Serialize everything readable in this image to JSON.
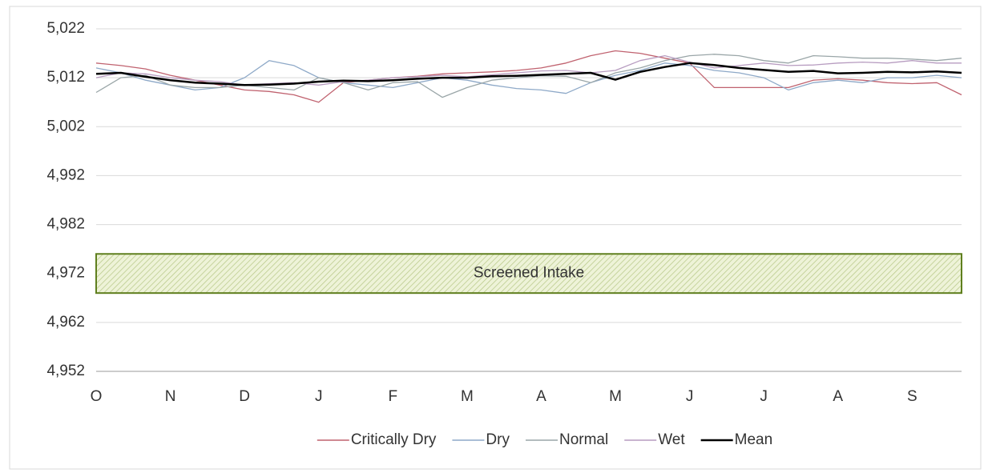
{
  "chart_data": {
    "type": "line",
    "categories": [
      "O",
      null,
      null,
      "N",
      null,
      null,
      "D",
      null,
      null,
      "J",
      null,
      null,
      "F",
      null,
      null,
      "M",
      null,
      null,
      "A",
      null,
      null,
      "M",
      null,
      null,
      "J",
      null,
      null,
      "J",
      null,
      null,
      "A",
      null,
      null,
      "S",
      null,
      null
    ],
    "series": [
      {
        "name": "Critically Dry",
        "color": "#c0626f",
        "values": [
          5015,
          5014.5,
          5013.8,
          5012.5,
          5011.5,
          5010.5,
          5009.5,
          5009.2,
          5008.5,
          5007,
          5011,
          5011.5,
          5012,
          5012.3,
          5012.8,
          5013,
          5013.2,
          5013.5,
          5014,
          5015,
          5016.5,
          5017.5,
          5017,
          5016,
          5015,
          5010,
          5010,
          5010,
          5010,
          5011.5,
          5011.8,
          5011.5,
          5011,
          5010.8,
          5011,
          5008.5
        ]
      },
      {
        "name": "Dry",
        "color": "#8ea9c8",
        "values": [
          5014,
          5013,
          5011.5,
          5010.5,
          5009.5,
          5010,
          5012,
          5015.5,
          5014.5,
          5012,
          5011,
          5010.5,
          5010,
          5011,
          5012,
          5011.5,
          5010.5,
          5009.8,
          5009.5,
          5008.8,
          5011,
          5012.5,
          5013.5,
          5015,
          5014.5,
          5013.5,
          5013,
          5012,
          5009.5,
          5011,
          5011.5,
          5011,
          5012,
          5012,
          5012.5,
          5012
        ]
      },
      {
        "name": "Normal",
        "color": "#9aa6a8",
        "values": [
          5009,
          5012,
          5012.5,
          5010.5,
          5010,
          5010,
          5010.5,
          5010,
          5009.5,
          5012,
          5011,
          5009.5,
          5011,
          5011.2,
          5008,
          5010,
          5011.5,
          5012,
          5012.4,
          5012.3,
          5011,
          5013,
          5014,
          5015.5,
          5016.5,
          5016.8,
          5016.5,
          5015.5,
          5015,
          5016.5,
          5016.3,
          5016,
          5016,
          5015.8,
          5015.5,
          5016
        ]
      },
      {
        "name": "Wet",
        "color": "#b79cc0",
        "values": [
          5012,
          5013,
          5012.8,
          5012,
          5011.5,
          5011.2,
          5010.5,
          5010.8,
          5011,
          5010.5,
          5011.2,
          5011.5,
          5012,
          5012.2,
          5012.5,
          5012.2,
          5012.6,
          5013,
          5013.4,
          5013.5,
          5013,
          5013.5,
          5015.5,
          5016.5,
          5015.2,
          5014,
          5014.5,
          5015,
          5014.5,
          5014.6,
          5015,
          5015.2,
          5015,
          5015.5,
          5015,
          5015
        ]
      },
      {
        "name": "Mean",
        "color": "#000000",
        "width": 2.5,
        "values": [
          5012.8,
          5013,
          5012.2,
          5011.5,
          5011,
          5010.8,
          5010.5,
          5010.6,
          5010.8,
          5011.2,
          5011.4,
          5011.3,
          5011.5,
          5011.8,
          5012,
          5012,
          5012.3,
          5012.4,
          5012.6,
          5012.8,
          5013,
          5011.6,
          5013.2,
          5014.2,
          5015,
          5014.6,
          5014,
          5013.6,
          5013.2,
          5013.4,
          5012.9,
          5013,
          5013.2,
          5013.1,
          5013.3,
          5013
        ]
      }
    ],
    "band": {
      "label": "Screened Intake",
      "from": 4968,
      "to": 4976
    },
    "ylim": [
      4952,
      5022
    ],
    "yticks": [
      {
        "value": 4952,
        "label": "4,952"
      },
      {
        "value": 4962,
        "label": "4,962"
      },
      {
        "value": 4972,
        "label": "4,972"
      },
      {
        "value": 4982,
        "label": "4,982"
      },
      {
        "value": 4992,
        "label": "4,992"
      },
      {
        "value": 5002,
        "label": "5,002"
      },
      {
        "value": 5012,
        "label": "5,012"
      },
      {
        "value": 5022,
        "label": "5,022"
      }
    ],
    "grid": true,
    "legend": "bottom"
  }
}
